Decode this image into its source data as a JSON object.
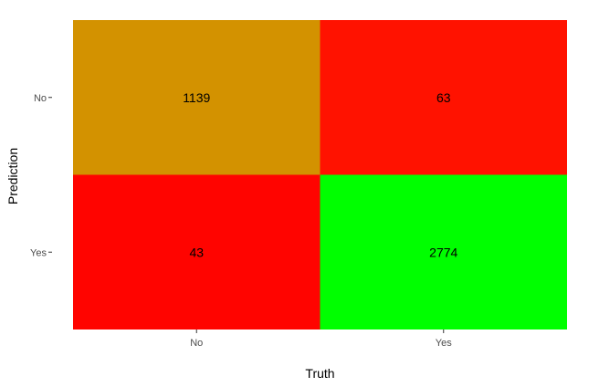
{
  "chart_data": {
    "type": "heatmap",
    "title": "",
    "xlabel": "Truth",
    "ylabel": "Prediction",
    "x_categories": [
      "No",
      "Yes"
    ],
    "y_categories": [
      "No",
      "Yes"
    ],
    "cells": [
      {
        "prediction": "No",
        "truth": "No",
        "value": 1139,
        "color": "#D39200"
      },
      {
        "prediction": "No",
        "truth": "Yes",
        "value": 63,
        "color": "#FF1200"
      },
      {
        "prediction": "Yes",
        "truth": "No",
        "value": 43,
        "color": "#FF0400"
      },
      {
        "prediction": "Yes",
        "truth": "Yes",
        "value": 2774,
        "color": "#00FF00"
      }
    ],
    "grid": false,
    "legend": "none"
  }
}
